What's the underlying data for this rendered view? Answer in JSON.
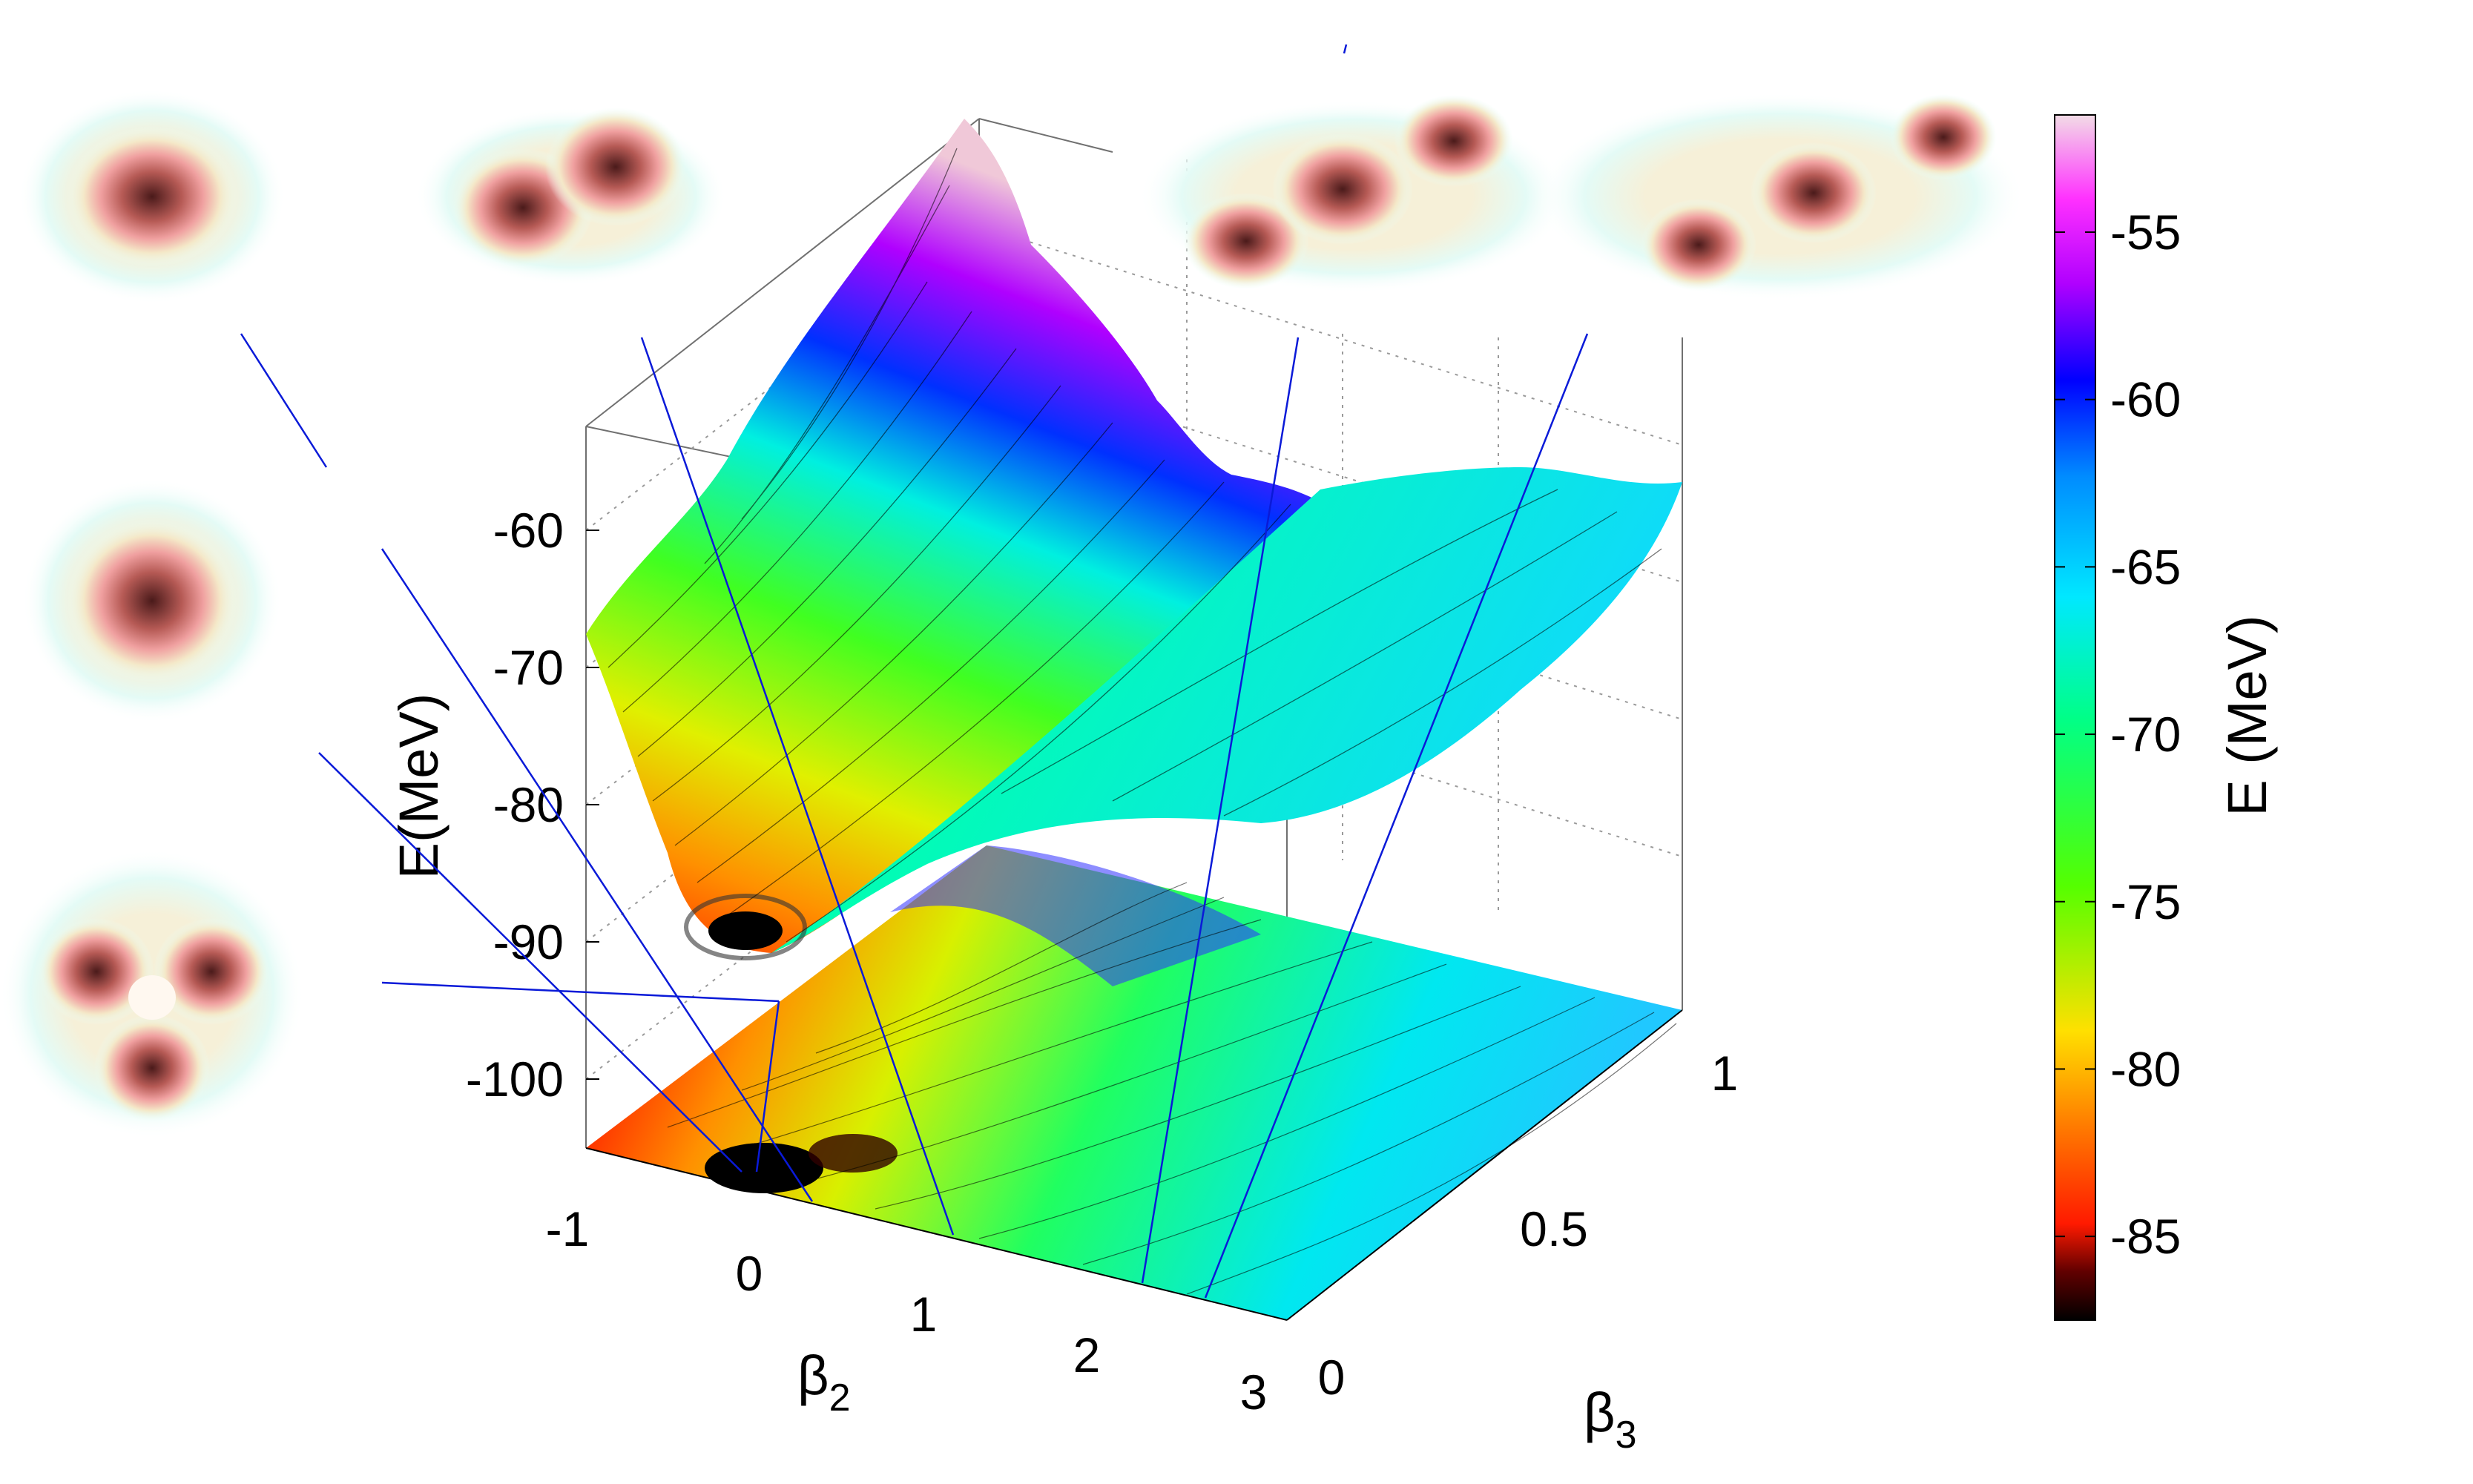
{
  "chart_data": {
    "type": "surface3d",
    "title": "",
    "xlabel": "β",
    "xlabel_sub": "2",
    "ylabel": "β",
    "ylabel_sub": "3",
    "zlabel": "E(MeV)",
    "xlim": [
      -1,
      3
    ],
    "ylim": [
      0,
      1.1
    ],
    "zlim": [
      -105,
      -50
    ],
    "x_ticks": [
      "-1",
      "0",
      "1",
      "2",
      "3"
    ],
    "y_ticks": [
      "0",
      "0.5",
      "1"
    ],
    "z_ticks": [
      "-60",
      "-70",
      "-80",
      "-90",
      "-100"
    ],
    "grid": true,
    "projection": "contour map of E projected onto the base plane",
    "surface_profile_at_beta3_0": {
      "x": [
        -1.0,
        -0.5,
        0.0,
        0.5,
        1.0,
        1.5,
        2.0,
        2.5,
        3.0
      ],
      "E": [
        -68,
        -85,
        -90,
        -83,
        -76,
        -72,
        -70,
        -67,
        -63
      ]
    },
    "surface_profile_at_beta3_1": {
      "x": [
        -1.0,
        -0.5,
        0.0,
        0.5,
        1.0,
        1.5,
        2.0,
        2.5,
        3.0
      ],
      "E": [
        -52,
        -58,
        -64,
        -70,
        -73,
        -72,
        -71,
        -69,
        -66
      ]
    },
    "minimum": {
      "beta2": 0.0,
      "beta3": 0.0,
      "E": -90
    },
    "colorbar": {
      "label": "E (MeV)",
      "ticks": [
        "-55",
        "-60",
        "-65",
        "-70",
        "-75",
        "-80",
        "-85"
      ],
      "range": [
        -87.5,
        -51.5
      ],
      "colormap": "rainbow (black → red → orange → yellow → green → cyan → blue → magenta → pink)"
    },
    "annotations": [
      "density-distribution insets: near-spherical, two-lobe, three-lobe chain, four-lobe chain, sphere, triangular ring",
      "blue pointer lines from insets to points on the (β2, β3) plane"
    ]
  }
}
